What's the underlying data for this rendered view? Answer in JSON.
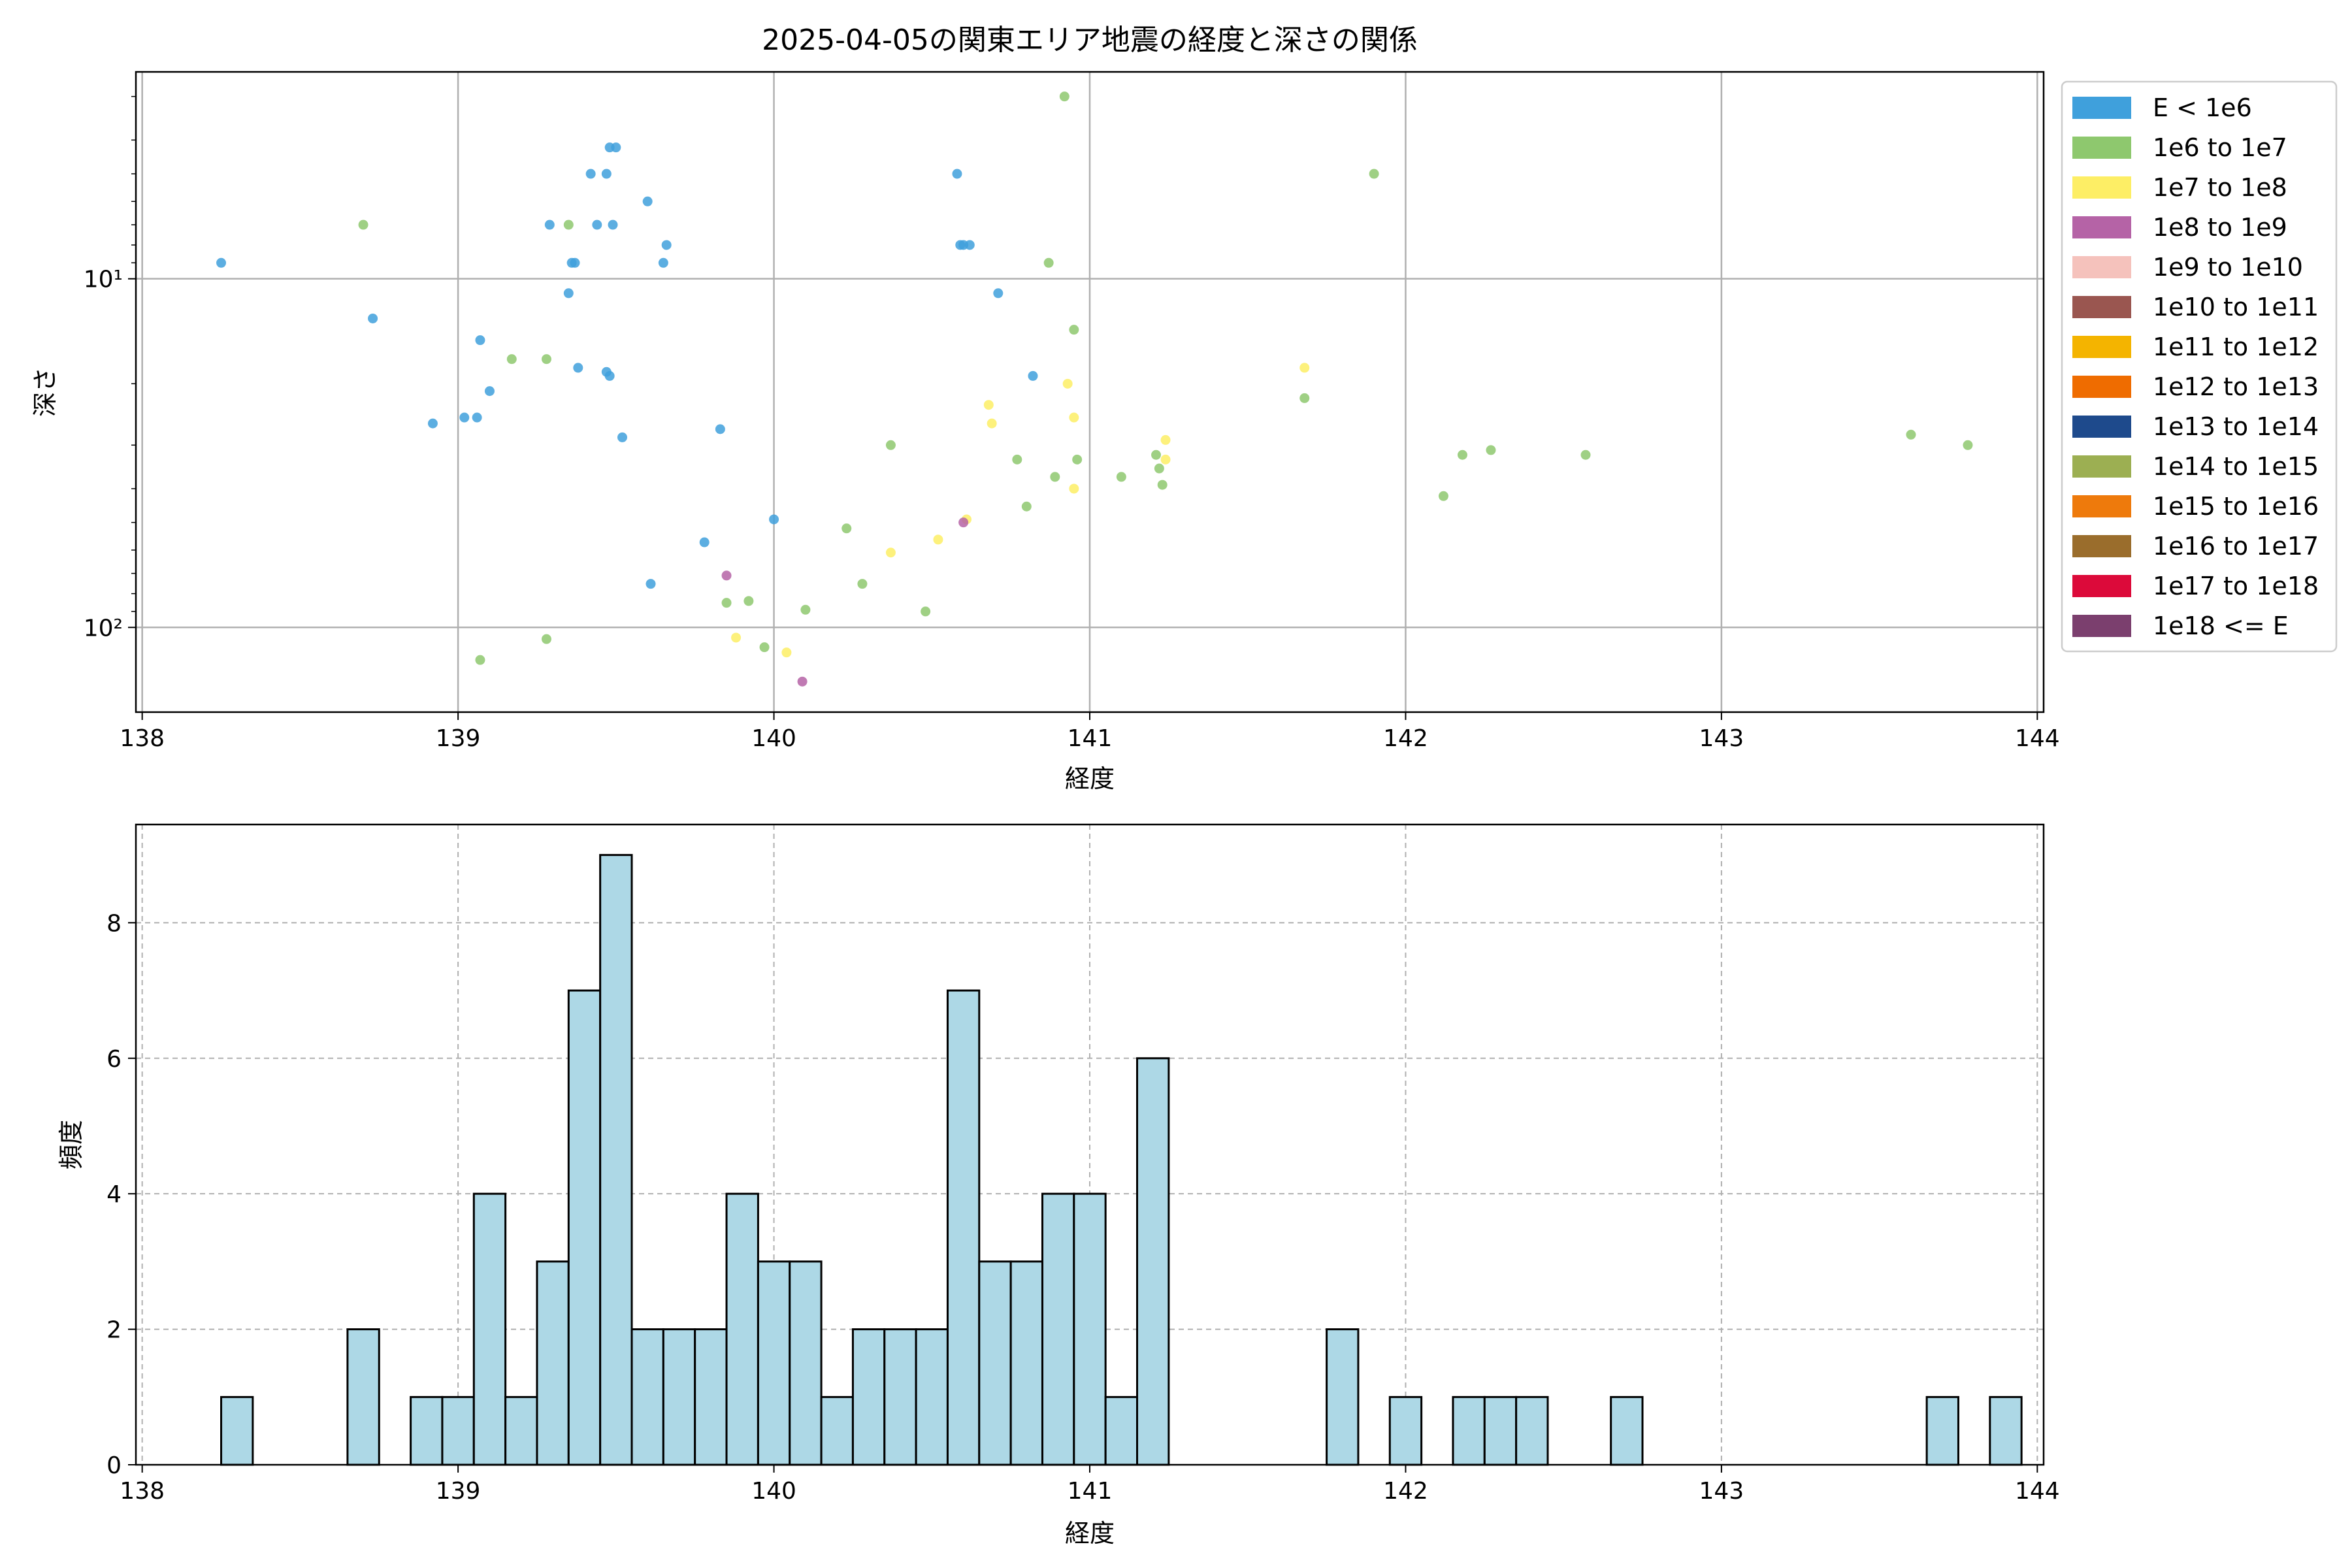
{
  "chart_data": [
    {
      "type": "scatter",
      "title": "2025-04-05の関東エリア地震の経度と深さの関係",
      "xlabel": "経度",
      "ylabel": "深さ",
      "xlim": [
        137.98,
        144.02
      ],
      "ylim": [
        175,
        2.55
      ],
      "y_scale": "log",
      "y_inverted": true,
      "grid": true,
      "xticks": [
        "138",
        "139",
        "140",
        "141",
        "142",
        "143",
        "144"
      ],
      "yticks": [
        "10¹",
        "10²"
      ],
      "legend_position": "outside-right",
      "legend": [
        {
          "label": "E < 1e6",
          "color": "#3fa0dc"
        },
        {
          "label": "1e6 to 1e7",
          "color": "#8ec86e"
        },
        {
          "label": "1e7 to 1e8",
          "color": "#fdee65"
        },
        {
          "label": "1e8 to 1e9",
          "color": "#b563a6"
        },
        {
          "label": "1e9 to 1e10",
          "color": "#f5c2bc"
        },
        {
          "label": "1e10 to 1e11",
          "color": "#9a5650"
        },
        {
          "label": "1e11 to 1e12",
          "color": "#f4b400"
        },
        {
          "label": "1e12 to 1e13",
          "color": "#ef6c00"
        },
        {
          "label": "1e13 to 1e14",
          "color": "#1e4a8c"
        },
        {
          "label": "1e14 to 1e15",
          "color": "#9caf52"
        },
        {
          "label": "1e15 to 1e16",
          "color": "#ee7a0c"
        },
        {
          "label": "1e16 to 1e17",
          "color": "#9a6d2c"
        },
        {
          "label": "1e17 to 1e18",
          "color": "#dc0a3a"
        },
        {
          "label": "1e18 <= E",
          "color": "#7b3f6e"
        }
      ],
      "series": [
        {
          "name": "E < 1e6",
          "color": "#3fa0dc",
          "x": [
            138.25,
            138.73,
            138.92,
            139.02,
            139.06,
            139.07,
            139.1,
            139.29,
            139.35,
            139.36,
            139.37,
            139.38,
            139.42,
            139.44,
            139.47,
            139.47,
            139.48,
            139.48,
            139.49,
            139.5,
            139.52,
            139.6,
            139.61,
            139.65,
            139.66,
            139.78,
            139.83,
            140.0,
            140.58,
            140.59,
            140.6,
            140.62,
            140.71,
            140.82
          ],
          "y": [
            9,
            13,
            26,
            25,
            25,
            15,
            21,
            7,
            11,
            9,
            9,
            18,
            5,
            7,
            5,
            18.5,
            19,
            4.2,
            7,
            4.2,
            28.5,
            6,
            75,
            9,
            8,
            57,
            27,
            49,
            5,
            8,
            8,
            8,
            11,
            19
          ]
        },
        {
          "name": "1e6 to 1e7",
          "color": "#8ec86e",
          "x": [
            138.7,
            139.07,
            139.17,
            139.28,
            139.28,
            139.35,
            139.85,
            139.92,
            139.97,
            140.1,
            140.23,
            140.28,
            140.37,
            140.48,
            140.77,
            140.8,
            140.87,
            140.89,
            140.92,
            140.95,
            140.96,
            141.1,
            141.21,
            141.22,
            141.23,
            141.68,
            141.9,
            142.12,
            142.18,
            142.27,
            142.57,
            143.6,
            143.78
          ],
          "y": [
            7,
            124,
            17,
            17,
            108,
            7,
            85,
            84,
            114,
            89,
            52,
            75,
            30,
            90,
            33,
            45,
            9,
            37,
            3,
            14,
            33,
            37,
            32,
            35,
            39,
            22,
            5,
            42,
            32,
            31,
            32,
            28,
            30
          ]
        },
        {
          "name": "1e7 to 1e8",
          "color": "#fdee65",
          "x": [
            139.88,
            140.04,
            140.37,
            140.52,
            140.61,
            140.68,
            140.69,
            140.93,
            140.95,
            140.95,
            141.24,
            141.24,
            141.68
          ],
          "y": [
            107,
            118,
            61,
            56,
            49,
            23,
            26,
            20,
            25,
            40,
            29,
            33,
            18
          ]
        },
        {
          "name": "1e8 to 1e9",
          "color": "#b563a6",
          "x": [
            139.85,
            140.09,
            140.6
          ],
          "y": [
            71,
            143,
            50
          ]
        }
      ]
    },
    {
      "type": "bar",
      "title": "",
      "xlabel": "経度",
      "ylabel": "頻度",
      "xlim": [
        137.98,
        144.02
      ],
      "ylim": [
        0,
        9.45
      ],
      "grid": true,
      "grid_style": "dashed",
      "xticks": [
        "138",
        "139",
        "140",
        "141",
        "142",
        "143",
        "144"
      ],
      "yticks": [
        "0",
        "2",
        "4",
        "6",
        "8"
      ],
      "bar_color": "#add8e6",
      "edge_color": "#000000",
      "bin_start": 138.25,
      "bin_width": 0.1,
      "values": [
        1,
        0,
        0,
        0,
        2,
        0,
        1,
        1,
        4,
        1,
        3,
        7,
        9,
        2,
        2,
        2,
        4,
        3,
        3,
        1,
        2,
        2,
        2,
        7,
        3,
        3,
        4,
        4,
        1,
        6,
        0,
        0,
        0,
        0,
        0,
        2,
        0,
        1,
        0,
        1,
        1,
        1,
        0,
        0,
        1,
        0,
        0,
        0,
        0,
        0,
        0,
        0,
        0,
        0,
        1,
        0,
        1
      ]
    }
  ]
}
